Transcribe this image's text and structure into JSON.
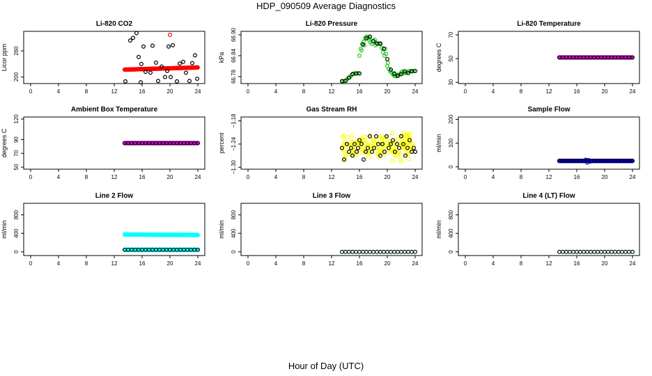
{
  "figure": {
    "title": "HDP_090509  Average Diagnostics",
    "xlabel": "Hour of Day (UTC)"
  },
  "chart_data": [
    {
      "type": "scatter",
      "title": "Li-820 CO2",
      "ylabel": "Licor ppm",
      "xlim": [
        -1,
        25
      ],
      "ylim": [
        185,
        305
      ],
      "xticks": [
        "0",
        "4",
        "8",
        "12",
        "16",
        "20",
        "24"
      ],
      "yticks": [
        {
          "value": 200,
          "label": "200"
        },
        {
          "value": 260,
          "label": "260"
        }
      ],
      "series": [
        {
          "name": "CO2",
          "color": "#ff0000",
          "marker": "dense",
          "x_start": 13.5,
          "x_end": 24.0,
          "y_start": 217,
          "y_end": 222
        },
        {
          "name": "CO2 outlier",
          "color": "#ff0000",
          "marker": "circle",
          "x": [
            20.0
          ],
          "y": [
            297
          ]
        },
        {
          "name": "hourly",
          "color": "#000000",
          "marker": "circle",
          "x": [
            13.6,
            14.3,
            14.7,
            15.2,
            15.5,
            15.8,
            15.9,
            16.2,
            16.5,
            17.2,
            17.5,
            18.0,
            18.3,
            18.8,
            19.3,
            19.6,
            19.8,
            20.1,
            20.4,
            21.0,
            21.4,
            21.9,
            22.3,
            22.8,
            23.2,
            23.6,
            23.9
          ],
          "y": [
            190,
            284,
            290,
            301,
            246,
            188,
            230,
            270,
            212,
            210,
            272,
            233,
            191,
            224,
            200,
            214,
            270,
            200,
            273,
            190,
            231,
            235,
            210,
            191,
            232,
            250,
            196
          ]
        }
      ]
    },
    {
      "type": "scatter",
      "title": "Li-820 Pressure",
      "ylabel": "kPa",
      "xlim": [
        -1,
        25
      ],
      "ylim": [
        66.76,
        66.91
      ],
      "xticks": [
        "0",
        "4",
        "8",
        "12",
        "16",
        "20",
        "24"
      ],
      "yticks": [
        {
          "value": 66.78,
          "label": "66.78"
        },
        {
          "value": 66.84,
          "label": "66.84"
        },
        {
          "value": 66.9,
          "label": "66.90"
        }
      ],
      "series": [
        {
          "name": "pressure",
          "color": "#22cc22",
          "marker": "circle",
          "x": [
            13.6,
            13.8,
            14.0,
            14.2,
            14.4,
            14.6,
            14.8,
            15.0,
            15.2,
            15.4,
            15.6,
            15.8,
            16.0,
            16.2,
            16.4,
            16.6,
            16.8,
            17.0,
            17.2,
            17.4,
            17.6,
            17.8,
            18.0,
            18.2,
            18.4,
            18.6,
            18.8,
            19.0,
            19.2,
            19.4,
            19.6,
            19.8,
            20.0,
            20.2,
            20.4,
            20.6,
            20.8,
            21.0,
            21.2,
            21.4,
            21.6,
            21.8,
            22.0,
            22.2,
            22.4,
            22.6,
            22.8,
            23.0,
            23.2,
            23.4,
            23.6,
            23.8,
            16.3,
            16.7,
            17.5,
            18.3,
            19.7,
            20.1,
            20.5,
            21.0,
            21.5
          ],
          "y": [
            66.767,
            66.767,
            66.768,
            66.771,
            66.776,
            66.778,
            66.783,
            66.787,
            66.789,
            66.789,
            66.789,
            66.79,
            66.84,
            66.86,
            66.874,
            66.88,
            66.89,
            66.895,
            66.893,
            66.885,
            66.878,
            66.874,
            66.882,
            66.886,
            66.878,
            66.874,
            66.875,
            66.873,
            66.862,
            66.85,
            66.84,
            66.845,
            66.81,
            66.802,
            66.795,
            66.792,
            66.786,
            66.782,
            66.781,
            66.782,
            66.786,
            66.787,
            66.792,
            66.795,
            66.79,
            66.79,
            66.793,
            66.795,
            66.796,
            66.796,
            66.796,
            66.796,
            66.855,
            66.87,
            66.89,
            66.87,
            66.86,
            66.82,
            66.8,
            66.79,
            66.785
          ]
        },
        {
          "name": "hourly",
          "color": "#000000",
          "marker": "circle",
          "x": [
            13.5,
            14.0,
            14.5,
            15.0,
            15.5,
            16.0,
            16.5,
            17.0,
            17.5,
            18.0,
            18.5,
            19.0,
            19.5,
            20.0,
            20.5,
            21.0,
            21.5,
            22.0,
            22.5,
            23.0,
            23.5,
            24.0
          ],
          "y": [
            66.767,
            66.768,
            66.777,
            66.787,
            66.789,
            66.789,
            66.872,
            66.89,
            66.895,
            66.882,
            66.875,
            66.875,
            66.86,
            66.83,
            66.8,
            66.788,
            66.782,
            66.787,
            66.795,
            66.79,
            66.795,
            66.796
          ]
        }
      ]
    },
    {
      "type": "scatter",
      "title": "Li-820 Temperature",
      "ylabel": "degrees C",
      "xlim": [
        -1,
        25
      ],
      "ylim": [
        29,
        73
      ],
      "xticks": [
        "0",
        "4",
        "8",
        "12",
        "16",
        "20",
        "24"
      ],
      "yticks": [
        {
          "value": 30,
          "label": "30"
        },
        {
          "value": 50,
          "label": "50"
        },
        {
          "value": 70,
          "label": "70"
        }
      ],
      "series": [
        {
          "name": "temperature",
          "color": "#cc00cc",
          "marker": "dense",
          "x_start": 13.5,
          "x_end": 24.0,
          "y_start": 51,
          "y_end": 51
        },
        {
          "name": "hourly",
          "color": "#000000",
          "marker": "circles-line",
          "x_start": 13.5,
          "x_end": 24.0,
          "step": 0.5,
          "y": 51
        }
      ]
    },
    {
      "type": "scatter",
      "title": "Ambient Box Temperature",
      "ylabel": "degrees C",
      "xlim": [
        -1,
        25
      ],
      "ylim": [
        47,
        123
      ],
      "xticks": [
        "0",
        "4",
        "8",
        "12",
        "16",
        "20",
        "24"
      ],
      "yticks": [
        {
          "value": 50,
          "label": "50"
        },
        {
          "value": 70,
          "label": "70"
        },
        {
          "value": 90,
          "label": "90"
        },
        {
          "value": 120,
          "label": "120"
        }
      ],
      "series": [
        {
          "name": "box temperature",
          "color": "#cc00cc",
          "marker": "dense",
          "x_start": 13.5,
          "x_end": 24.0,
          "y_start": 85,
          "y_end": 85
        },
        {
          "name": "hourly",
          "color": "#000000",
          "marker": "circles-line",
          "x_start": 13.5,
          "x_end": 24.0,
          "step": 0.5,
          "y": 85
        }
      ]
    },
    {
      "type": "scatter",
      "title": "Gas Stream RH",
      "ylabel": "percent",
      "xlim": [
        -1,
        25
      ],
      "ylim": [
        -1.305,
        -1.17
      ],
      "xticks": [
        "0",
        "4",
        "8",
        "12",
        "16",
        "20",
        "24"
      ],
      "yticks": [
        {
          "value": -1.3,
          "label": "−1.30"
        },
        {
          "value": -1.24,
          "label": "−1.24"
        },
        {
          "value": -1.18,
          "label": "−1.18"
        }
      ],
      "series": [
        {
          "name": "rh",
          "color": "#ffff00",
          "marker": "scatter-cloud",
          "x_start": 13.5,
          "x_end": 24.0,
          "count": 180,
          "y_center": -1.245,
          "y_spread": 0.03
        },
        {
          "name": "hourly",
          "color": "#000000",
          "marker": "circle",
          "x": [
            13.5,
            13.8,
            14.2,
            14.5,
            14.8,
            15.0,
            15.3,
            15.6,
            15.8,
            16.0,
            16.3,
            16.6,
            16.9,
            17.2,
            17.5,
            17.8,
            18.1,
            18.4,
            18.7,
            19.0,
            19.3,
            19.6,
            19.9,
            20.2,
            20.5,
            20.8,
            21.1,
            21.4,
            21.7,
            22.0,
            22.3,
            22.6,
            22.9,
            23.2,
            23.5,
            23.8,
            24.0
          ],
          "y": [
            -1.25,
            -1.28,
            -1.24,
            -1.26,
            -1.25,
            -1.27,
            -1.24,
            -1.26,
            -1.25,
            -1.23,
            -1.24,
            -1.28,
            -1.26,
            -1.25,
            -1.22,
            -1.26,
            -1.25,
            -1.22,
            -1.24,
            -1.27,
            -1.24,
            -1.26,
            -1.22,
            -1.25,
            -1.24,
            -1.23,
            -1.26,
            -1.24,
            -1.25,
            -1.22,
            -1.24,
            -1.27,
            -1.25,
            -1.23,
            -1.26,
            -1.25,
            -1.26
          ]
        }
      ]
    },
    {
      "type": "scatter",
      "title": "Sample Flow",
      "ylabel": "ml/min",
      "xlim": [
        -1,
        25
      ],
      "ylim": [
        -10,
        210
      ],
      "xticks": [
        "0",
        "4",
        "8",
        "12",
        "16",
        "20",
        "24"
      ],
      "yticks": [
        {
          "value": 0,
          "label": "0"
        },
        {
          "value": 100,
          "label": "100"
        },
        {
          "value": 200,
          "label": "200"
        }
      ],
      "series": [
        {
          "name": "sample flow",
          "color": "#0000cc",
          "marker": "dense",
          "x_start": 13.5,
          "x_end": 24.0,
          "y_start": 25,
          "y_end": 25
        },
        {
          "name": "sample flow spike",
          "color": "#0000cc",
          "marker": "circle",
          "x": [
            17.3,
            17.5,
            17.7,
            17.9
          ],
          "y": [
            30,
            18,
            28,
            22
          ]
        },
        {
          "name": "hourly",
          "color": "#000000",
          "marker": "circles-line",
          "x_start": 13.5,
          "x_end": 24.0,
          "step": 0.5,
          "y": 25
        }
      ]
    },
    {
      "type": "scatter",
      "title": "Line 2 Flow",
      "ylabel": "ml/min",
      "xlim": [
        -1,
        25
      ],
      "ylim": [
        -80,
        1050
      ],
      "xticks": [
        "0",
        "4",
        "8",
        "12",
        "16",
        "20",
        "24"
      ],
      "yticks": [
        {
          "value": 0,
          "label": "0"
        },
        {
          "value": 400,
          "label": "400"
        },
        {
          "value": 800,
          "label": "800"
        }
      ],
      "series": [
        {
          "name": "flow high",
          "color": "#00ffff",
          "marker": "dense",
          "x_start": 13.5,
          "x_end": 24.0,
          "y_start": 375,
          "y_end": 365
        },
        {
          "name": "flow low",
          "color": "#00ffff",
          "marker": "dense",
          "x_start": 13.5,
          "x_end": 24.0,
          "y_start": 45,
          "y_end": 45
        },
        {
          "name": "hourly",
          "color": "#000000",
          "marker": "circles-line",
          "x_start": 13.5,
          "x_end": 24.0,
          "step": 0.5,
          "y": 45
        }
      ]
    },
    {
      "type": "scatter",
      "title": "Line 3 Flow",
      "ylabel": "ml/min",
      "xlim": [
        -1,
        25
      ],
      "ylim": [
        -80,
        1050
      ],
      "xticks": [
        "0",
        "4",
        "8",
        "12",
        "16",
        "20",
        "24"
      ],
      "yticks": [
        {
          "value": 0,
          "label": "0"
        },
        {
          "value": 400,
          "label": "400"
        },
        {
          "value": 800,
          "label": "800"
        }
      ],
      "series": [
        {
          "name": "flow",
          "color": "#00cccc",
          "marker": "circles-line",
          "x_start": 13.5,
          "x_end": 24.0,
          "step": 0.5,
          "y": 0
        },
        {
          "name": "hourly",
          "color": "#000000",
          "marker": "circles-line",
          "x_start": 13.5,
          "x_end": 24.0,
          "step": 0.5,
          "y": 0
        }
      ]
    },
    {
      "type": "scatter",
      "title": "Line 4 (LT) Flow",
      "ylabel": "ml/min",
      "xlim": [
        -1,
        25
      ],
      "ylim": [
        -80,
        1050
      ],
      "xticks": [
        "0",
        "4",
        "8",
        "12",
        "16",
        "20",
        "24"
      ],
      "yticks": [
        {
          "value": 0,
          "label": "0"
        },
        {
          "value": 400,
          "label": "400"
        },
        {
          "value": 800,
          "label": "800"
        }
      ],
      "series": [
        {
          "name": "flow",
          "color": "#00cccc",
          "marker": "circles-line",
          "x_start": 13.5,
          "x_end": 24.0,
          "step": 0.5,
          "y": 0
        },
        {
          "name": "hourly",
          "color": "#000000",
          "marker": "circles-line",
          "x_start": 13.5,
          "x_end": 24.0,
          "step": 0.5,
          "y": 0
        }
      ]
    }
  ]
}
